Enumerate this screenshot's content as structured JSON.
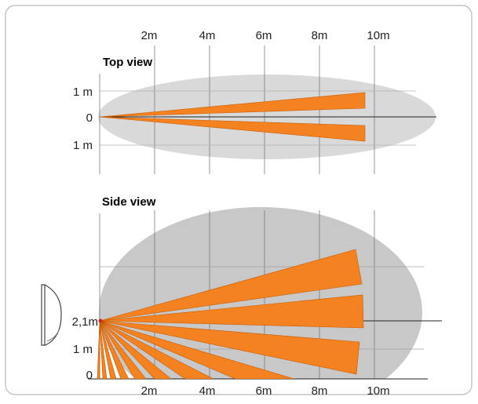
{
  "colors": {
    "frame_border": "#b8b8b8",
    "top_ellipse": "#d9d9d9",
    "side_ellipse": "#c8c8c8",
    "beam": "#f58220",
    "beam_edge": "#c85a00",
    "grid": "#7a7a7a",
    "axis": "#222222",
    "sensor_point": "#d62020"
  },
  "distance_labels": [
    "2m",
    "4m",
    "6m",
    "8m",
    "10m"
  ],
  "top_view": {
    "title": "Top view",
    "row_labels": [
      "1 m",
      "0",
      "1 m"
    ]
  },
  "side_view": {
    "title": "Side view",
    "row_labels": [
      "2,1m",
      "1 m",
      "0"
    ]
  },
  "icons": {
    "sensor": "motion-sensor-icon"
  }
}
